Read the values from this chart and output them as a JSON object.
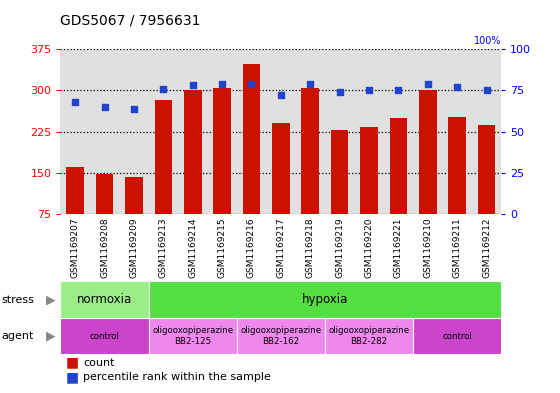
{
  "title": "GDS5067 / 7956631",
  "samples": [
    "GSM1169207",
    "GSM1169208",
    "GSM1169209",
    "GSM1169213",
    "GSM1169214",
    "GSM1169215",
    "GSM1169216",
    "GSM1169217",
    "GSM1169218",
    "GSM1169219",
    "GSM1169220",
    "GSM1169221",
    "GSM1169210",
    "GSM1169211",
    "GSM1169212"
  ],
  "counts": [
    160,
    148,
    143,
    282,
    300,
    305,
    348,
    240,
    305,
    228,
    233,
    250,
    300,
    252,
    237
  ],
  "percentiles": [
    68,
    65,
    64,
    76,
    78,
    79,
    79,
    72,
    79,
    74,
    75,
    75,
    79,
    77,
    75
  ],
  "ylim_left": [
    75,
    375
  ],
  "ylim_right": [
    0,
    100
  ],
  "yticks_left": [
    75,
    150,
    225,
    300,
    375
  ],
  "yticks_right": [
    0,
    25,
    50,
    75,
    100
  ],
  "bar_color": "#cc1100",
  "dot_color": "#2244cc",
  "stress_groups": [
    {
      "label": "normoxia",
      "start": 0,
      "end": 3,
      "color": "#99ee88"
    },
    {
      "label": "hypoxia",
      "start": 3,
      "end": 15,
      "color": "#55dd44"
    }
  ],
  "agent_groups": [
    {
      "label": "control",
      "start": 0,
      "end": 3,
      "color": "#cc44cc"
    },
    {
      "label": "oligooxopiperazine\nBB2-125",
      "start": 3,
      "end": 6,
      "color": "#ee88ee"
    },
    {
      "label": "oligooxopiperazine\nBB2-162",
      "start": 6,
      "end": 9,
      "color": "#ee88ee"
    },
    {
      "label": "oligooxopiperazine\nBB2-282",
      "start": 9,
      "end": 12,
      "color": "#ee88ee"
    },
    {
      "label": "control",
      "start": 12,
      "end": 15,
      "color": "#cc44cc"
    }
  ],
  "legend_count_label": "count",
  "legend_pct_label": "percentile rank within the sample",
  "stress_label": "stress",
  "agent_label": "agent",
  "bg_color": "#ffffff",
  "plot_bg_color": "#e0e0e0",
  "xtick_bg_color": "#cccccc"
}
